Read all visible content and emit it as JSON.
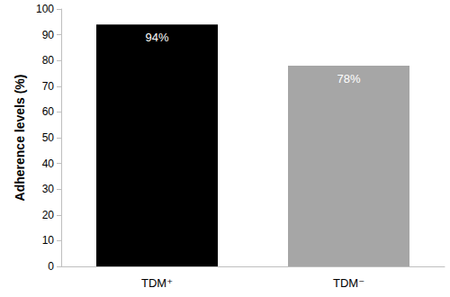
{
  "chart_data": {
    "type": "bar",
    "categories": [
      "TDM⁺",
      "TDM⁻"
    ],
    "values": [
      94,
      78
    ],
    "value_labels": [
      "94%",
      "78%"
    ],
    "colors": [
      "#000000",
      "#a6a6a6"
    ],
    "y_label": "Adherence levels (%)",
    "ylim": [
      0,
      100
    ],
    "yticks": [
      0,
      10,
      20,
      30,
      40,
      50,
      60,
      70,
      80,
      90,
      100
    ],
    "grid": false,
    "data_labels": true
  }
}
